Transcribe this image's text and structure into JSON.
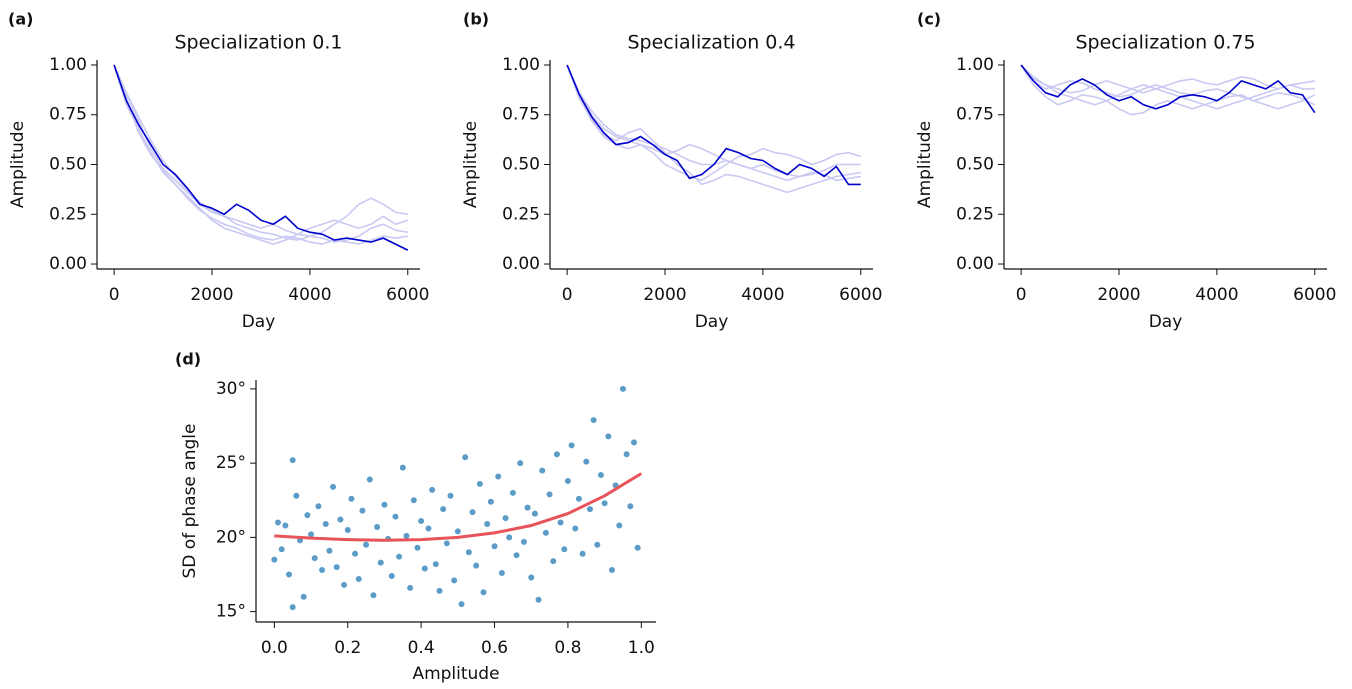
{
  "chart_data": [
    {
      "type": "line",
      "panel_label": "(a)",
      "title": "Specialization 0.1",
      "xlabel": "Day",
      "ylabel": "Amplitude",
      "xlim": [
        -350,
        6250
      ],
      "ylim": [
        -0.025,
        1.025
      ],
      "xticks": [
        0,
        2000,
        4000,
        6000
      ],
      "yticks": [
        {
          "value": 0,
          "label": "0.00"
        },
        {
          "value": 0.25,
          "label": "0.25"
        },
        {
          "value": 0.5,
          "label": "0.50"
        },
        {
          "value": 0.75,
          "label": "0.75"
        },
        {
          "value": 1,
          "label": "1.00"
        }
      ],
      "x": [
        0,
        250,
        500,
        750,
        1000,
        1250,
        1500,
        1750,
        2000,
        2250,
        2500,
        2750,
        3000,
        3250,
        3500,
        3750,
        4000,
        4250,
        4500,
        4750,
        5000,
        5250,
        5500,
        5750,
        6000
      ],
      "series": [
        {
          "color": "#c9c9f2",
          "values": [
            1.0,
            0.85,
            0.72,
            0.58,
            0.48,
            0.42,
            0.36,
            0.3,
            0.26,
            0.24,
            0.22,
            0.2,
            0.18,
            0.2,
            0.17,
            0.15,
            0.14,
            0.16,
            0.2,
            0.24,
            0.3,
            0.33,
            0.3,
            0.26,
            0.25
          ]
        },
        {
          "color": "#c9c9f2",
          "values": [
            1.0,
            0.8,
            0.68,
            0.56,
            0.46,
            0.4,
            0.34,
            0.28,
            0.22,
            0.18,
            0.16,
            0.14,
            0.12,
            0.1,
            0.12,
            0.15,
            0.18,
            0.2,
            0.22,
            0.2,
            0.18,
            0.2,
            0.24,
            0.2,
            0.22
          ]
        },
        {
          "color": "#c9c9f2",
          "values": [
            1.0,
            0.83,
            0.66,
            0.55,
            0.47,
            0.4,
            0.33,
            0.27,
            0.23,
            0.2,
            0.18,
            0.15,
            0.13,
            0.12,
            0.14,
            0.13,
            0.11,
            0.1,
            0.12,
            0.11,
            0.1,
            0.12,
            0.14,
            0.13,
            0.14
          ]
        },
        {
          "color": "#c9c9f2",
          "values": [
            1.0,
            0.86,
            0.74,
            0.62,
            0.52,
            0.44,
            0.37,
            0.31,
            0.27,
            0.24,
            0.2,
            0.18,
            0.16,
            0.15,
            0.13,
            0.12,
            0.14,
            0.13,
            0.11,
            0.12,
            0.14,
            0.18,
            0.2,
            0.17,
            0.16
          ]
        },
        {
          "color": "#0000cc",
          "values": [
            1.0,
            0.82,
            0.7,
            0.6,
            0.5,
            0.45,
            0.38,
            0.3,
            0.28,
            0.25,
            0.3,
            0.27,
            0.22,
            0.2,
            0.24,
            0.18,
            0.16,
            0.15,
            0.12,
            0.13,
            0.12,
            0.11,
            0.13,
            0.1,
            0.07
          ]
        }
      ]
    },
    {
      "type": "line",
      "panel_label": "(b)",
      "title": "Specialization 0.4",
      "xlabel": "Day",
      "ylabel": "Amplitude",
      "xlim": [
        -350,
        6250
      ],
      "ylim": [
        -0.025,
        1.025
      ],
      "xticks": [
        0,
        2000,
        4000,
        6000
      ],
      "yticks": [
        {
          "value": 0,
          "label": "0.00"
        },
        {
          "value": 0.25,
          "label": "0.25"
        },
        {
          "value": 0.5,
          "label": "0.50"
        },
        {
          "value": 0.75,
          "label": "0.75"
        },
        {
          "value": 1,
          "label": "1.00"
        }
      ],
      "x": [
        0,
        250,
        500,
        750,
        1000,
        1250,
        1500,
        1750,
        2000,
        2250,
        2500,
        2750,
        3000,
        3250,
        3500,
        3750,
        4000,
        4250,
        4500,
        4750,
        5000,
        5250,
        5500,
        5750,
        6000
      ],
      "series": [
        {
          "color": "#c9c9f2",
          "values": [
            1.0,
            0.86,
            0.75,
            0.68,
            0.64,
            0.62,
            0.6,
            0.58,
            0.55,
            0.57,
            0.6,
            0.58,
            0.55,
            0.52,
            0.5,
            0.48,
            0.5,
            0.47,
            0.45,
            0.44,
            0.46,
            0.45,
            0.42,
            0.43,
            0.44
          ]
        },
        {
          "color": "#c9c9f2",
          "values": [
            1.0,
            0.84,
            0.72,
            0.64,
            0.6,
            0.58,
            0.6,
            0.56,
            0.5,
            0.47,
            0.44,
            0.42,
            0.46,
            0.5,
            0.54,
            0.55,
            0.58,
            0.56,
            0.55,
            0.53,
            0.5,
            0.52,
            0.55,
            0.56,
            0.54
          ]
        },
        {
          "color": "#c9c9f2",
          "values": [
            1.0,
            0.83,
            0.73,
            0.65,
            0.62,
            0.66,
            0.68,
            0.62,
            0.56,
            0.5,
            0.46,
            0.4,
            0.42,
            0.45,
            0.44,
            0.42,
            0.4,
            0.38,
            0.36,
            0.38,
            0.4,
            0.42,
            0.44,
            0.45,
            0.46
          ]
        },
        {
          "color": "#c9c9f2",
          "values": [
            1.0,
            0.86,
            0.77,
            0.7,
            0.65,
            0.63,
            0.62,
            0.6,
            0.58,
            0.55,
            0.52,
            0.5,
            0.5,
            0.52,
            0.5,
            0.48,
            0.46,
            0.44,
            0.42,
            0.44,
            0.45,
            0.47,
            0.5,
            0.5,
            0.5
          ]
        },
        {
          "color": "#0000cc",
          "values": [
            1.0,
            0.85,
            0.74,
            0.66,
            0.6,
            0.61,
            0.64,
            0.6,
            0.55,
            0.52,
            0.43,
            0.45,
            0.5,
            0.58,
            0.56,
            0.53,
            0.52,
            0.48,
            0.45,
            0.5,
            0.48,
            0.44,
            0.49,
            0.4,
            0.4
          ]
        }
      ]
    },
    {
      "type": "line",
      "panel_label": "(c)",
      "title": "Specialization 0.75",
      "xlabel": "Day",
      "ylabel": "Amplitude",
      "xlim": [
        -350,
        6250
      ],
      "ylim": [
        -0.025,
        1.025
      ],
      "xticks": [
        0,
        2000,
        4000,
        6000
      ],
      "yticks": [
        {
          "value": 0,
          "label": "0.00"
        },
        {
          "value": 0.25,
          "label": "0.25"
        },
        {
          "value": 0.5,
          "label": "0.50"
        },
        {
          "value": 0.75,
          "label": "0.75"
        },
        {
          "value": 1,
          "label": "1.00"
        }
      ],
      "x": [
        0,
        250,
        500,
        750,
        1000,
        1250,
        1500,
        1750,
        2000,
        2250,
        2500,
        2750,
        3000,
        3250,
        3500,
        3750,
        4000,
        4250,
        4500,
        4750,
        5000,
        5250,
        5500,
        5750,
        6000
      ],
      "series": [
        {
          "color": "#c9c9f2",
          "values": [
            1.0,
            0.93,
            0.9,
            0.88,
            0.86,
            0.87,
            0.9,
            0.92,
            0.9,
            0.88,
            0.86,
            0.88,
            0.9,
            0.92,
            0.93,
            0.91,
            0.9,
            0.92,
            0.94,
            0.93,
            0.9,
            0.88,
            0.9,
            0.91,
            0.92
          ]
        },
        {
          "color": "#c9c9f2",
          "values": [
            1.0,
            0.9,
            0.84,
            0.8,
            0.82,
            0.85,
            0.84,
            0.82,
            0.78,
            0.75,
            0.76,
            0.8,
            0.82,
            0.8,
            0.78,
            0.8,
            0.82,
            0.84,
            0.85,
            0.82,
            0.8,
            0.78,
            0.8,
            0.82,
            0.85
          ]
        },
        {
          "color": "#c9c9f2",
          "values": [
            1.0,
            0.94,
            0.9,
            0.86,
            0.84,
            0.82,
            0.8,
            0.82,
            0.85,
            0.88,
            0.9,
            0.88,
            0.86,
            0.84,
            0.82,
            0.8,
            0.78,
            0.8,
            0.82,
            0.84,
            0.86,
            0.88,
            0.9,
            0.88,
            0.88
          ]
        },
        {
          "color": "#c9c9f2",
          "values": [
            1.0,
            0.92,
            0.88,
            0.9,
            0.92,
            0.91,
            0.88,
            0.86,
            0.84,
            0.85,
            0.88,
            0.9,
            0.88,
            0.86,
            0.85,
            0.87,
            0.88,
            0.86,
            0.84,
            0.82,
            0.84,
            0.86,
            0.85,
            0.83,
            0.8
          ]
        },
        {
          "color": "#0000cc",
          "values": [
            1.0,
            0.92,
            0.86,
            0.84,
            0.9,
            0.93,
            0.9,
            0.85,
            0.82,
            0.84,
            0.8,
            0.78,
            0.8,
            0.84,
            0.85,
            0.84,
            0.82,
            0.86,
            0.92,
            0.9,
            0.88,
            0.92,
            0.86,
            0.85,
            0.76
          ]
        }
      ]
    },
    {
      "type": "scatter",
      "panel_label": "(d)",
      "xlabel": "Amplitude",
      "ylabel": "SD of phase angle",
      "xlim": [
        -0.05,
        1.04
      ],
      "ylim": [
        14.3,
        30.6
      ],
      "xticks": [
        {
          "value": 0,
          "label": "0.0"
        },
        0.2,
        0.4,
        0.6,
        0.8,
        {
          "value": 1,
          "label": "1.0"
        }
      ],
      "yticks": [
        {
          "value": 15,
          "label": "15°"
        },
        {
          "value": 20,
          "label": "20°"
        },
        {
          "value": 25,
          "label": "25°"
        },
        {
          "value": 30,
          "label": "30°"
        }
      ],
      "color": "#5b9bc8",
      "x": [
        0.0,
        0.01,
        0.02,
        0.03,
        0.04,
        0.05,
        0.05,
        0.06,
        0.07,
        0.08,
        0.09,
        0.1,
        0.11,
        0.12,
        0.13,
        0.14,
        0.15,
        0.16,
        0.17,
        0.18,
        0.19,
        0.2,
        0.21,
        0.22,
        0.23,
        0.24,
        0.25,
        0.26,
        0.27,
        0.28,
        0.29,
        0.3,
        0.31,
        0.32,
        0.33,
        0.34,
        0.35,
        0.36,
        0.37,
        0.38,
        0.39,
        0.4,
        0.41,
        0.42,
        0.43,
        0.44,
        0.45,
        0.46,
        0.47,
        0.48,
        0.49,
        0.5,
        0.51,
        0.52,
        0.53,
        0.54,
        0.55,
        0.56,
        0.57,
        0.58,
        0.59,
        0.6,
        0.61,
        0.62,
        0.63,
        0.64,
        0.65,
        0.66,
        0.67,
        0.68,
        0.69,
        0.7,
        0.71,
        0.72,
        0.73,
        0.74,
        0.75,
        0.76,
        0.77,
        0.78,
        0.79,
        0.8,
        0.81,
        0.82,
        0.83,
        0.84,
        0.85,
        0.86,
        0.87,
        0.88,
        0.89,
        0.9,
        0.91,
        0.92,
        0.93,
        0.94,
        0.95,
        0.96,
        0.97,
        0.98,
        0.99
      ],
      "values": [
        18.5,
        21,
        19.2,
        20.8,
        17.5,
        25.2,
        15.3,
        22.8,
        19.8,
        16,
        21.5,
        20.2,
        18.6,
        22.1,
        17.8,
        20.9,
        19.1,
        23.4,
        18,
        21.2,
        16.8,
        20.5,
        22.6,
        18.9,
        17.2,
        21.8,
        19.5,
        23.9,
        16.1,
        20.7,
        18.3,
        22.2,
        19.9,
        17.4,
        21.4,
        18.7,
        24.7,
        20.1,
        16.6,
        22.5,
        19.3,
        21.1,
        17.9,
        20.6,
        23.2,
        18.2,
        16.4,
        21.9,
        19.6,
        22.8,
        17.1,
        20.4,
        15.5,
        25.4,
        19,
        21.7,
        18.1,
        23.6,
        16.3,
        20.9,
        22.4,
        19.4,
        24.1,
        17.6,
        21.3,
        20,
        23,
        18.8,
        25,
        19.7,
        22,
        17.3,
        21.6,
        15.8,
        24.5,
        20.3,
        22.9,
        18.4,
        25.6,
        21,
        19.2,
        23.8,
        26.2,
        20.6,
        22.6,
        18.9,
        25.1,
        21.9,
        27.9,
        19.5,
        24.2,
        22.3,
        26.8,
        17.8,
        23.5,
        20.8,
        30,
        25.6,
        22.1,
        26.4,
        19.3
      ],
      "fit": {
        "color": "#e8545a",
        "x": [
          0,
          0.1,
          0.2,
          0.3,
          0.4,
          0.5,
          0.6,
          0.7,
          0.8,
          0.9,
          1.0
        ],
        "values": [
          20.1,
          19.95,
          19.85,
          19.8,
          19.85,
          20.0,
          20.3,
          20.8,
          21.6,
          22.8,
          24.3
        ]
      }
    }
  ]
}
